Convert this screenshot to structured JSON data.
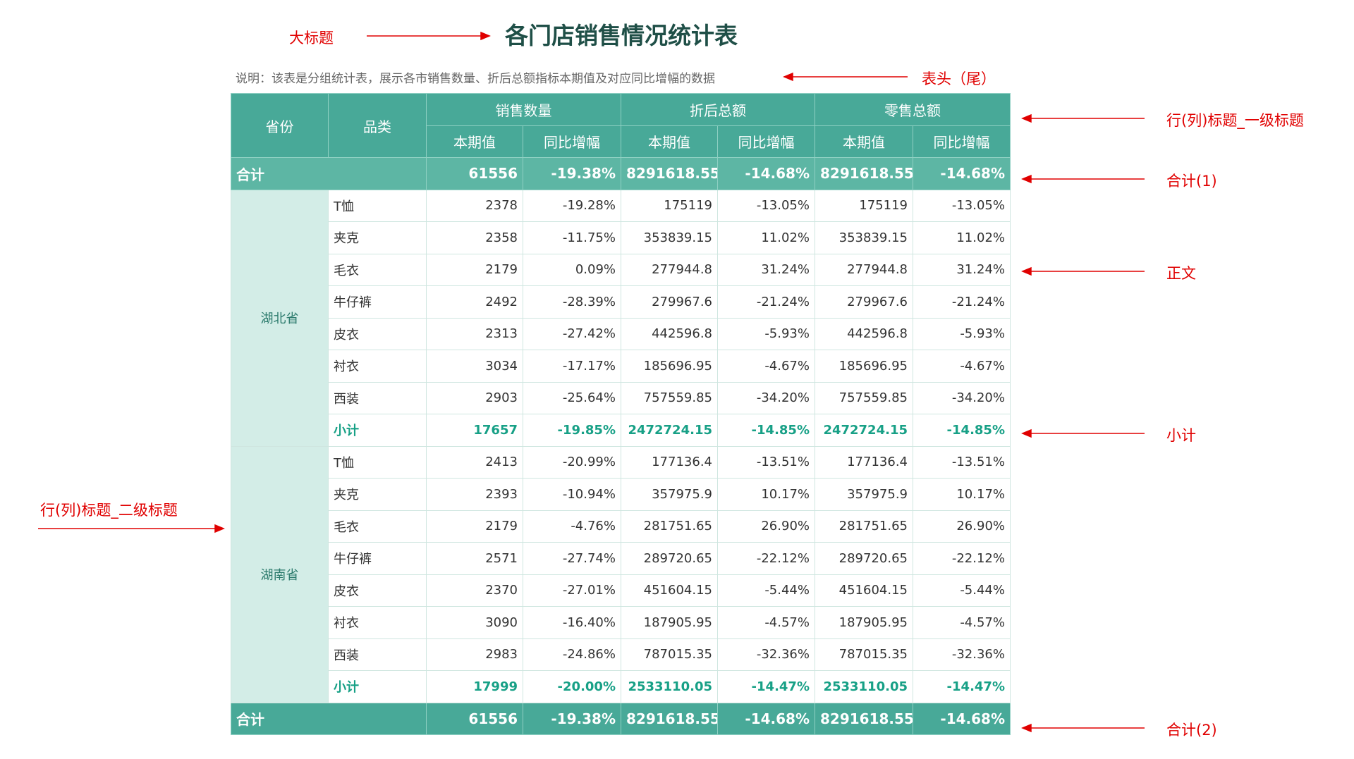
{
  "header": {
    "title": "各门店销售情况统计表",
    "note": "说明：该表是分组统计表，展示各市销售数量、折后总额指标本期值及对应同比增幅的数据"
  },
  "annotations": {
    "title": "大标题",
    "header_footer": "表头（尾）",
    "level1": "行(列)标题_一级标题",
    "total1": "合计(1)",
    "body": "正文",
    "subtotal": "小计",
    "total2": "合计(2)",
    "level2": "行(列)标题_二级标题"
  },
  "table": {
    "columns": [
      "省份",
      "品类"
    ],
    "groups": [
      "销售数量",
      "折后总额",
      "零售总额"
    ],
    "sub_headers": [
      "本期值",
      "同比增幅",
      "本期值",
      "同比增幅",
      "本期值",
      "同比增幅"
    ],
    "total_top": {
      "label": "合计",
      "values": [
        "61556",
        "-19.38%",
        "8291618.55",
        "-14.68%",
        "8291618.55",
        "-14.68%"
      ]
    },
    "provinces": [
      {
        "name": "湖北省",
        "rows": [
          {
            "category": "T恤",
            "values": [
              "2378",
              "-19.28%",
              "175119",
              "-13.05%",
              "175119",
              "-13.05%"
            ]
          },
          {
            "category": "夹克",
            "values": [
              "2358",
              "-11.75%",
              "353839.15",
              "11.02%",
              "353839.15",
              "11.02%"
            ]
          },
          {
            "category": "毛衣",
            "values": [
              "2179",
              "0.09%",
              "277944.8",
              "31.24%",
              "277944.8",
              "31.24%"
            ]
          },
          {
            "category": "牛仔裤",
            "values": [
              "2492",
              "-28.39%",
              "279967.6",
              "-21.24%",
              "279967.6",
              "-21.24%"
            ]
          },
          {
            "category": "皮衣",
            "values": [
              "2313",
              "-27.42%",
              "442596.8",
              "-5.93%",
              "442596.8",
              "-5.93%"
            ]
          },
          {
            "category": "衬衣",
            "values": [
              "3034",
              "-17.17%",
              "185696.95",
              "-4.67%",
              "185696.95",
              "-4.67%"
            ]
          },
          {
            "category": "西装",
            "values": [
              "2903",
              "-25.64%",
              "757559.85",
              "-34.20%",
              "757559.85",
              "-34.20%"
            ]
          }
        ],
        "subtotal": {
          "label": "小计",
          "values": [
            "17657",
            "-19.85%",
            "2472724.15",
            "-14.85%",
            "2472724.15",
            "-14.85%"
          ]
        }
      },
      {
        "name": "湖南省",
        "rows": [
          {
            "category": "T恤",
            "values": [
              "2413",
              "-20.99%",
              "177136.4",
              "-13.51%",
              "177136.4",
              "-13.51%"
            ]
          },
          {
            "category": "夹克",
            "values": [
              "2393",
              "-10.94%",
              "357975.9",
              "10.17%",
              "357975.9",
              "10.17%"
            ]
          },
          {
            "category": "毛衣",
            "values": [
              "2179",
              "-4.76%",
              "281751.65",
              "26.90%",
              "281751.65",
              "26.90%"
            ]
          },
          {
            "category": "牛仔裤",
            "values": [
              "2571",
              "-27.74%",
              "289720.65",
              "-22.12%",
              "289720.65",
              "-22.12%"
            ]
          },
          {
            "category": "皮衣",
            "values": [
              "2370",
              "-27.01%",
              "451604.15",
              "-5.44%",
              "451604.15",
              "-5.44%"
            ]
          },
          {
            "category": "衬衣",
            "values": [
              "3090",
              "-16.40%",
              "187905.95",
              "-4.57%",
              "187905.95",
              "-4.57%"
            ]
          },
          {
            "category": "西装",
            "values": [
              "2983",
              "-24.86%",
              "787015.35",
              "-32.36%",
              "787015.35",
              "-32.36%"
            ]
          }
        ],
        "subtotal": {
          "label": "小计",
          "values": [
            "17999",
            "-20.00%",
            "2533110.05",
            "-14.47%",
            "2533110.05",
            "-14.47%"
          ]
        }
      }
    ],
    "total_bottom": {
      "label": "合计",
      "values": [
        "61556",
        "-19.38%",
        "8291618.55",
        "-14.68%",
        "8291618.55",
        "-14.68%"
      ]
    }
  }
}
